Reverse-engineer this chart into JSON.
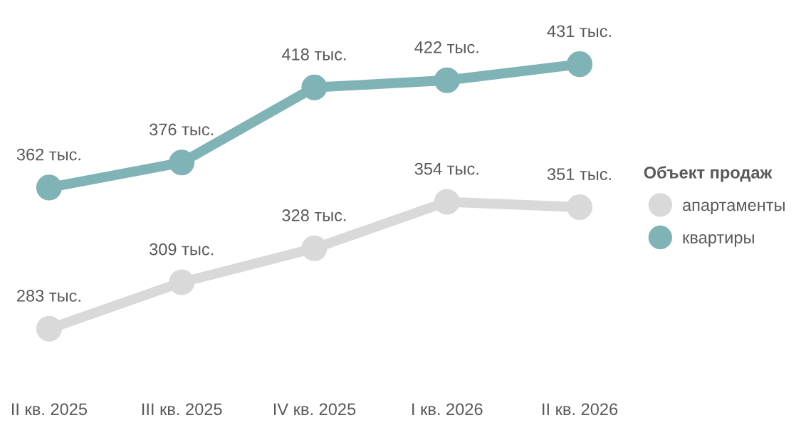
{
  "chart_data": {
    "type": "line",
    "categories": [
      "II кв. 2025",
      "III кв. 2025",
      "IV кв. 2025",
      "I кв. 2026",
      "II кв. 2026"
    ],
    "legend_title": "Объект продаж",
    "legend": "right",
    "marker": "circle",
    "line_style": "solid",
    "grid": false,
    "tick_labels": "x",
    "series": [
      {
        "name": "апартаменты",
        "color": "#d9d9d9",
        "values": [
          283,
          309,
          328,
          354,
          351
        ],
        "value_labels": [
          "283 тыс.",
          "309 тыс.",
          "328 тыс.",
          "354 тыс.",
          "351 тыс."
        ]
      },
      {
        "name": "квартиры",
        "color": "#7fb3b5",
        "values": [
          362,
          376,
          418,
          422,
          431
        ],
        "value_labels": [
          "362 тыс.",
          "376 тыс.",
          "418 тыс.",
          "422 тыс.",
          "431 тыс."
        ]
      }
    ]
  }
}
